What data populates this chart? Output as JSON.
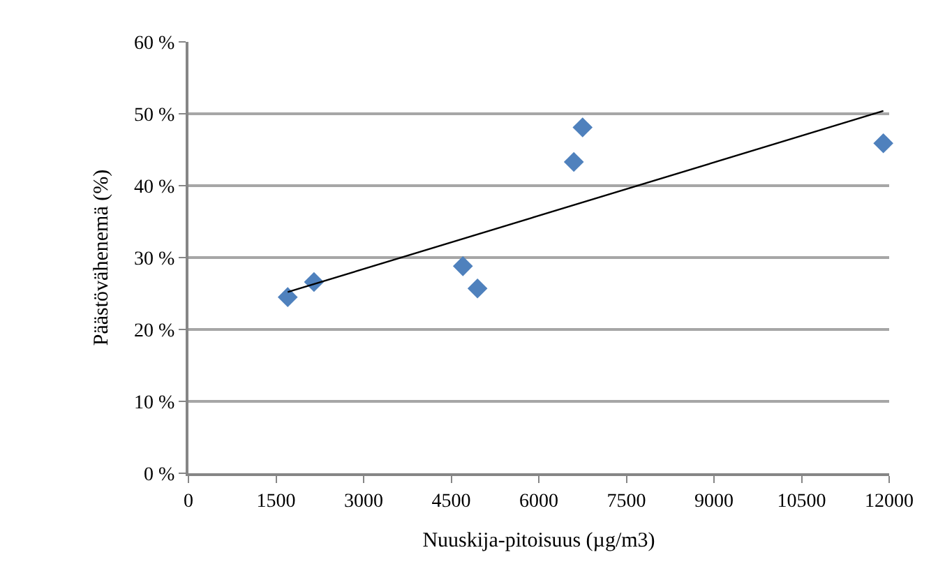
{
  "chart_data": {
    "type": "scatter",
    "xlabel": "Nuuskija-pitoisuus (µg/m3)",
    "ylabel": "Päästövähenemä (%)",
    "marker": "diamond",
    "grid": "y",
    "xlim": [
      0,
      12000
    ],
    "xticks": [
      0,
      1500,
      3000,
      4500,
      6000,
      7500,
      9000,
      10500,
      12000
    ],
    "ylim": [
      0,
      60
    ],
    "yticks": [
      {
        "value": 0,
        "label": "0 %"
      },
      {
        "value": 10,
        "label": "10 %"
      },
      {
        "value": 20,
        "label": "20 %"
      },
      {
        "value": 30,
        "label": "30 %"
      },
      {
        "value": 40,
        "label": "40 %"
      },
      {
        "value": 50,
        "label": "50 %"
      },
      {
        "value": 60,
        "label": "60 %"
      }
    ],
    "series": [
      {
        "color": "#4f81bd",
        "x": [
          1700,
          2150,
          4700,
          4950,
          6600,
          6750,
          11900
        ],
        "values": [
          24.5,
          26.6,
          28.8,
          25.7,
          43.3,
          48.1,
          45.9
        ]
      },
      {
        "type": "line",
        "color": "#000000",
        "marker": "none",
        "line_style": "solid",
        "x": [
          1700,
          11900
        ],
        "values": [
          25.2,
          50.4
        ]
      }
    ]
  }
}
